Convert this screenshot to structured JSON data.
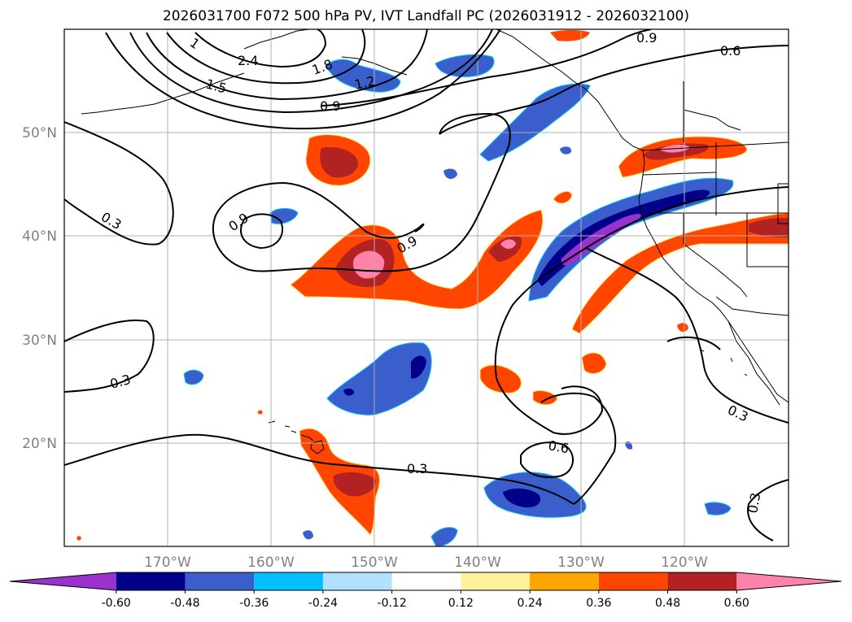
{
  "title": "2026031700 F072 500 hPa PV, IVT Landfall PC (2026031912 - 2026032100)",
  "map": {
    "lon_labels": [
      "170°W",
      "160°W",
      "150°W",
      "140°W",
      "130°W",
      "120°W"
    ],
    "lat_labels": [
      "50°N",
      "40°N",
      "30°N",
      "20°N"
    ],
    "contour_labels": [
      "2.4",
      "1.8",
      "1.5",
      "1.2",
      "1",
      "0.9",
      "0.9",
      "0.9",
      "0.9",
      "0.6",
      "0.6",
      "0.3",
      "0.3",
      "0.3",
      "0.3",
      "0.3"
    ]
  },
  "colorbar": {
    "ticks": [
      "-0.60",
      "-0.48",
      "-0.36",
      "-0.24",
      "-0.12",
      "0.12",
      "0.24",
      "0.36",
      "0.48",
      "0.60"
    ],
    "colors": [
      "#9932cc",
      "#00008b",
      "#3a5fcd",
      "#00bfff",
      "#b0e2ff",
      "#ffffff",
      "#fff09a",
      "#ffa500",
      "#ff4500",
      "#b22222",
      "#ff82ab"
    ]
  }
}
